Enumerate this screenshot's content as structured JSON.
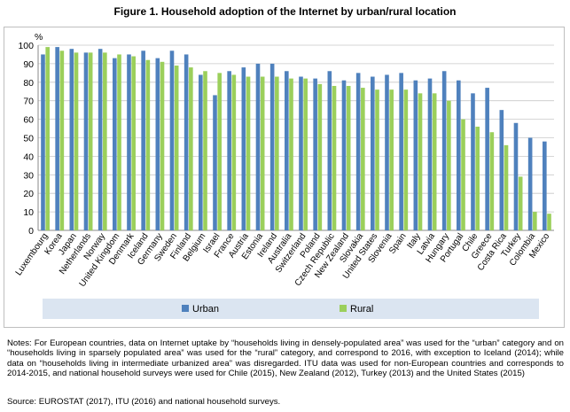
{
  "title": "Figure 1.  Household adoption of the Internet by urban/rural location",
  "notes": "Notes: For European countries, data on Internet uptake by “households living in densely-populated area” was used for the “urban” category and on “households living in sparsely populated area” was used for the “rural” category, and correspond to 2016, with exception to Iceland (2014); while data on “households living in intermediate urbanized area” was disregarded. ITU data was used for non-European countries and corresponds to 2014-2015, and national household surveys were used for Chile (2015), New Zealand (2012), Turkey (2013) and the United States (2015)",
  "source": "Source: EUROSTAT (2017), ITU (2016) and national household surveys.",
  "chart_data": {
    "type": "bar",
    "ylabel": "%",
    "ylim": [
      0,
      100
    ],
    "yticks": [
      0,
      10,
      20,
      30,
      40,
      50,
      60,
      70,
      80,
      90,
      100
    ],
    "grid": true,
    "legend_position": "bottom",
    "categories": [
      "Luxembourg",
      "Korea",
      "Japan",
      "Netherlands",
      "Norway",
      "United Kingdom",
      "Denmark",
      "Iceland",
      "Germany",
      "Sweden",
      "Finland",
      "Belgium",
      "Israel",
      "France",
      "Austria",
      "Estonia",
      "Ireland",
      "Australia",
      "Switzerland",
      "Poland",
      "Czech Republic",
      "New Zealand",
      "Slovakia",
      "United States",
      "Slovenia",
      "Spain",
      "Italy",
      "Latvia",
      "Hungary",
      "Portugal",
      "Chile",
      "Greece",
      "Costa Rica",
      "Turkey",
      "Colombia",
      "Mexico"
    ],
    "series": [
      {
        "name": "Urban",
        "color": "#4f81bd",
        "values": [
          95,
          99,
          98,
          96,
          98,
          93,
          95,
          97,
          93,
          97,
          95,
          84,
          73,
          86,
          88,
          90,
          90,
          86,
          83,
          82,
          86,
          81,
          85,
          83,
          84,
          85,
          81,
          82,
          86,
          81,
          74,
          77,
          65,
          58,
          50,
          48
        ]
      },
      {
        "name": "Rural",
        "color": "#9bcf5b",
        "values": [
          99,
          97,
          96,
          96,
          96,
          95,
          94,
          92,
          91,
          89,
          88,
          86,
          85,
          84,
          83,
          83,
          83,
          82,
          82,
          79,
          78,
          78,
          77,
          76,
          76,
          76,
          74,
          74,
          70,
          60,
          56,
          53,
          46,
          29,
          10,
          9
        ]
      }
    ]
  }
}
